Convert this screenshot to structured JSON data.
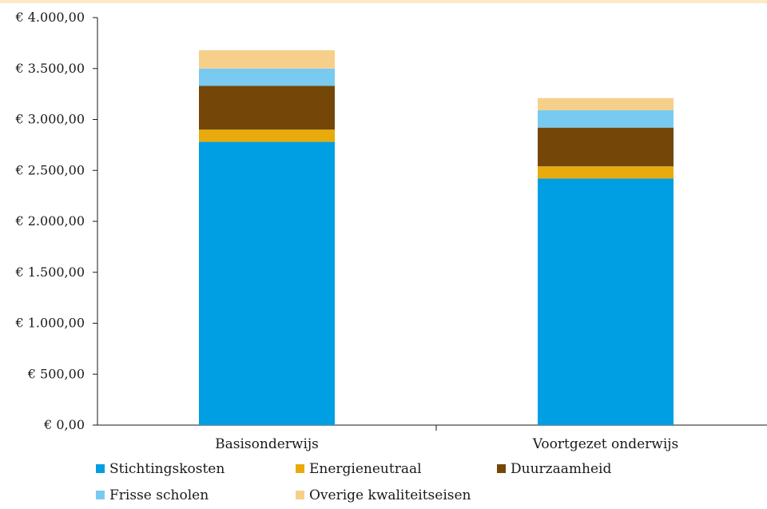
{
  "chart_data": {
    "type": "bar",
    "stacked": true,
    "title": "",
    "xlabel": "",
    "ylabel": "",
    "ylim": [
      0,
      4000
    ],
    "y_ticks": [
      0,
      500,
      1000,
      1500,
      2000,
      2500,
      3000,
      3500,
      4000
    ],
    "y_tick_labels": [
      "€ 0,00",
      "€ 500,00",
      "€ 1.000,00",
      "€ 1.500,00",
      "€ 2.000,00",
      "€ 2.500,00",
      "€ 3.000,00",
      "€ 3.500,00",
      "€ 4.000,00"
    ],
    "categories": [
      "Basisonderwijs",
      "Voortgezet onderwijs"
    ],
    "grid": false,
    "legend_position": "bottom",
    "series": [
      {
        "name": "Stichtingskosten",
        "color": "#009fe3",
        "values": [
          2780,
          2420
        ]
      },
      {
        "name": "Energieneutraal",
        "color": "#e9ab0b",
        "values": [
          120,
          120
        ]
      },
      {
        "name": "Duurzaamheid",
        "color": "#744709",
        "values": [
          430,
          380
        ]
      },
      {
        "name": "Frisse scholen",
        "color": "#79caf0",
        "values": [
          170,
          170
        ]
      },
      {
        "name": "Overige kwaliteitseisen",
        "color": "#f6d08b",
        "values": [
          180,
          120
        ]
      }
    ]
  }
}
